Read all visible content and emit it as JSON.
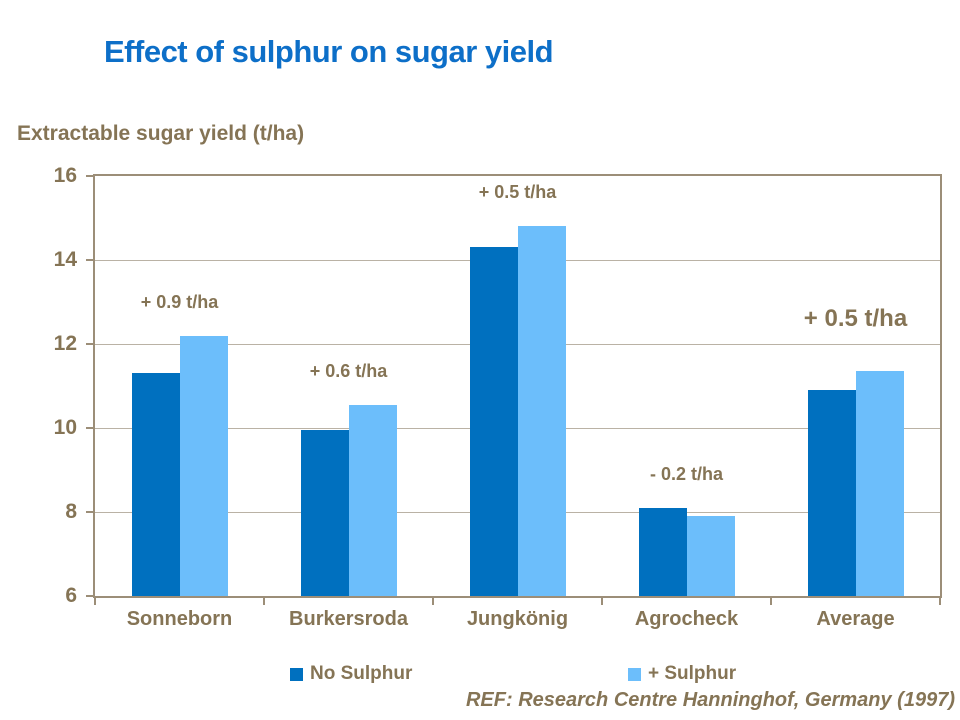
{
  "chart_data": {
    "type": "bar",
    "title": "Effect of sulphur on sugar yield",
    "ylabel": "Extractable sugar yield (t/ha)",
    "xlabel": "",
    "categories": [
      "Sonneborn",
      "Burkersroda",
      "Jungkönig",
      "Agrocheck",
      "Average"
    ],
    "series": [
      {
        "name": "No Sulphur",
        "color": "#0070BF",
        "values": [
          11.3,
          9.95,
          14.3,
          8.1,
          10.9
        ]
      },
      {
        "name": "+ Sulphur",
        "color": "#6CBEFB",
        "values": [
          12.2,
          10.55,
          14.8,
          7.9,
          11.35
        ]
      }
    ],
    "annotations": [
      {
        "category": "Sonneborn",
        "text": "+ 0.9 t/ha",
        "large": false
      },
      {
        "category": "Burkersroda",
        "text": "+ 0.6 t/ha",
        "large": false
      },
      {
        "category": "Jungkönig",
        "text": "+ 0.5 t/ha",
        "large": false
      },
      {
        "category": "Agrocheck",
        "text": "- 0.2 t/ha",
        "large": false
      },
      {
        "category": "Average",
        "text": "+ 0.5 t/ha",
        "large": true
      }
    ],
    "ylim": [
      6,
      16
    ],
    "yticks": [
      6,
      8,
      10,
      12,
      14,
      16
    ],
    "grid": true,
    "legend_position": "bottom"
  },
  "footer": {
    "text": "REF: Research Centre Hanninghof, Germany (1997)"
  },
  "colors": {
    "title": "#0D6FC8",
    "text": "#857455",
    "axis": "#9C8E78",
    "gridline": "#BAB2A5",
    "background": "#FFFFFF",
    "series_no_sulphur": "#0070BF",
    "series_plus_sulphur": "#6CBEFB"
  }
}
